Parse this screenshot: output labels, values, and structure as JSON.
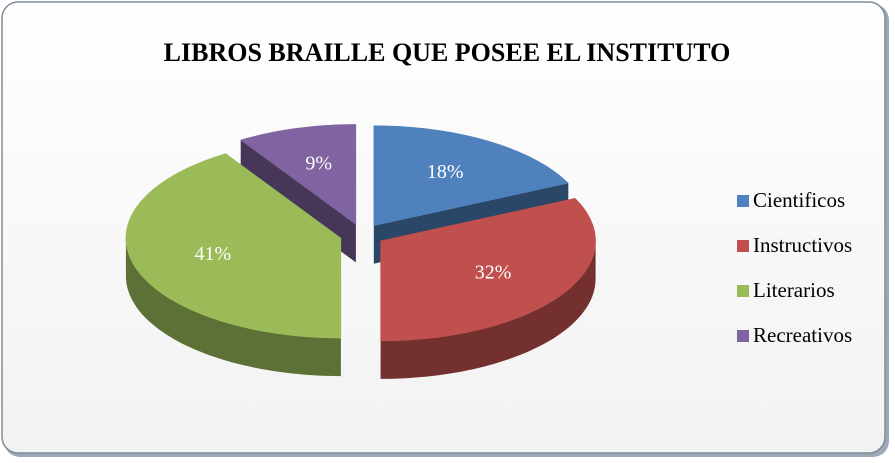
{
  "chart_data": {
    "type": "pie3d",
    "title": "LIBROS BRAILLE QUE POSEE EL INSTITUTO",
    "categories": [
      "Cientificos",
      "Instructivos",
      "Literarios",
      "Recreativos"
    ],
    "values": [
      18,
      32,
      41,
      9
    ],
    "value_labels": [
      "18%",
      "32%",
      "41%",
      "9%"
    ],
    "colors": [
      "#4f81bd",
      "#c0504d",
      "#9bbb59",
      "#8064a2"
    ],
    "legend": "right"
  }
}
